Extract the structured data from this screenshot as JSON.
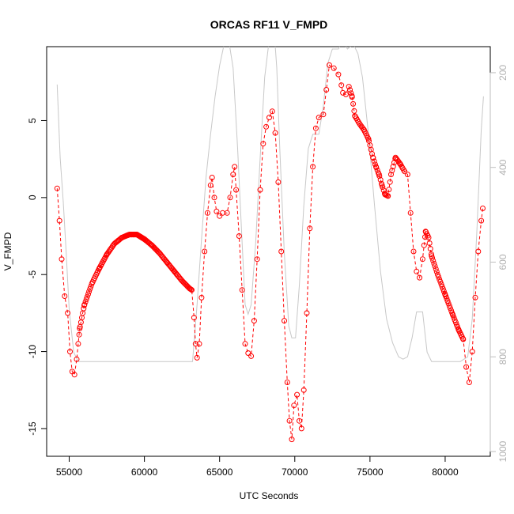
{
  "chart_data": {
    "type": "scatter",
    "title": "ORCAS RF11 V_FMPD",
    "xlabel": "UTC Seconds",
    "ylabel": "V_FMPD",
    "xlim": [
      53500,
      83000
    ],
    "ylim": [
      -16.8,
      9.8
    ],
    "x_ticks": [
      55000,
      60000,
      65000,
      70000,
      75000,
      80000
    ],
    "y_ticks": [
      -15,
      -10,
      -5,
      0,
      5
    ],
    "right_axis": {
      "label": "",
      "range": [
        1010,
        145
      ],
      "ticks": [
        200,
        400,
        600,
        800,
        1000
      ],
      "color": "#bebebe"
    },
    "grid": false,
    "series": [
      {
        "marker": "open-circle",
        "color": "#ff0000",
        "line": "dashed",
        "anchors": [
          [
            54200,
            0.6
          ],
          [
            54350,
            -1.5
          ],
          [
            54500,
            -4
          ],
          [
            54700,
            -6.4
          ],
          [
            54900,
            -7.5
          ],
          [
            55050,
            -10
          ],
          [
            55200,
            -11.3
          ],
          [
            55350,
            -11.5
          ],
          [
            55500,
            -10.5
          ],
          [
            55700,
            -8.5
          ],
          [
            56000,
            -7
          ],
          [
            56500,
            -5.6
          ],
          [
            57000,
            -4.6
          ],
          [
            57500,
            -3.7
          ],
          [
            58000,
            -3.0
          ],
          [
            58500,
            -2.6
          ],
          [
            59000,
            -2.4
          ],
          [
            59500,
            -2.4
          ],
          [
            60000,
            -2.7
          ],
          [
            60500,
            -3.1
          ],
          [
            61000,
            -3.6
          ],
          [
            61500,
            -4.2
          ],
          [
            62000,
            -4.8
          ],
          [
            62500,
            -5.4
          ],
          [
            63000,
            -5.9
          ],
          [
            63150,
            -6.0
          ],
          [
            63300,
            -7.8
          ],
          [
            63400,
            -9.5
          ],
          [
            63500,
            -10.4
          ],
          [
            63650,
            -9.5
          ],
          [
            63800,
            -6.5
          ],
          [
            64000,
            -3.5
          ],
          [
            64200,
            -1.0
          ],
          [
            64400,
            0.8
          ],
          [
            64500,
            1.3
          ],
          [
            64650,
            0.0
          ],
          [
            64800,
            -0.9
          ],
          [
            65000,
            -1.2
          ],
          [
            65200,
            -1.0
          ],
          [
            65500,
            -1.0
          ],
          [
            65700,
            0.0
          ],
          [
            65900,
            1.5
          ],
          [
            66000,
            2.0
          ],
          [
            66100,
            0.5
          ],
          [
            66300,
            -2.5
          ],
          [
            66500,
            -6.0
          ],
          [
            66700,
            -9.5
          ],
          [
            66900,
            -10.1
          ],
          [
            67100,
            -10.3
          ],
          [
            67300,
            -8.0
          ],
          [
            67500,
            -4.0
          ],
          [
            67700,
            0.5
          ],
          [
            67900,
            3.5
          ],
          [
            68100,
            4.6
          ],
          [
            68300,
            5.2
          ],
          [
            68500,
            5.6
          ],
          [
            68700,
            4.2
          ],
          [
            68900,
            1.0
          ],
          [
            69100,
            -3.5
          ],
          [
            69300,
            -8.0
          ],
          [
            69500,
            -12.0
          ],
          [
            69650,
            -14.5
          ],
          [
            69800,
            -15.7
          ],
          [
            69950,
            -13.5
          ],
          [
            70150,
            -12.8
          ],
          [
            70300,
            -14.5
          ],
          [
            70450,
            -15.0
          ],
          [
            70600,
            -12.5
          ],
          [
            70800,
            -7.5
          ],
          [
            71000,
            -2.0
          ],
          [
            71200,
            2.0
          ],
          [
            71400,
            4.5
          ],
          [
            71600,
            5.2
          ],
          [
            71900,
            5.4
          ],
          [
            72100,
            7.0
          ],
          [
            72300,
            8.6
          ],
          [
            72600,
            8.4
          ],
          [
            72900,
            8.0
          ],
          [
            73100,
            7.3
          ],
          [
            73200,
            6.8
          ],
          [
            73400,
            6.7
          ],
          [
            73600,
            7.2
          ],
          [
            73800,
            6.6
          ],
          [
            74000,
            5.3
          ],
          [
            74300,
            4.8
          ],
          [
            74600,
            4.4
          ],
          [
            74900,
            3.8
          ],
          [
            75200,
            2.6
          ],
          [
            75400,
            2.0
          ],
          [
            75600,
            1.5
          ],
          [
            75800,
            0.8
          ],
          [
            76000,
            0.2
          ],
          [
            76200,
            0.1
          ],
          [
            76400,
            1.5
          ],
          [
            76700,
            2.6
          ],
          [
            77000,
            2.2
          ],
          [
            77300,
            1.7
          ],
          [
            77500,
            1.5
          ],
          [
            77700,
            -1.0
          ],
          [
            77900,
            -3.5
          ],
          [
            78100,
            -4.8
          ],
          [
            78300,
            -5.2
          ],
          [
            78500,
            -4.0
          ],
          [
            78700,
            -2.2
          ],
          [
            78900,
            -2.6
          ],
          [
            79100,
            -3.8
          ],
          [
            79500,
            -5.0
          ],
          [
            80000,
            -6.3
          ],
          [
            80500,
            -7.6
          ],
          [
            80900,
            -8.6
          ],
          [
            81200,
            -9.2
          ],
          [
            81400,
            -11.0
          ],
          [
            81600,
            -12.0
          ],
          [
            81800,
            -10.0
          ],
          [
            82000,
            -6.5
          ],
          [
            82200,
            -3.5
          ],
          [
            82400,
            -1.5
          ],
          [
            82500,
            -0.7
          ]
        ],
        "segments": [
          {
            "x0": 55600,
            "x1": 63150,
            "step": 60
          },
          {
            "x0": 58800,
            "x1": 60100,
            "step": 40
          },
          {
            "x0": 73600,
            "x1": 77300,
            "step": 70
          },
          {
            "x0": 78600,
            "x1": 81200,
            "step": 60
          }
        ]
      }
    ],
    "reference_line": {
      "color": "#c8c8c8",
      "axis": "right",
      "anchors": [
        [
          54200,
          225
        ],
        [
          54400,
          380
        ],
        [
          54600,
          470
        ],
        [
          54800,
          580
        ],
        [
          55000,
          700
        ],
        [
          55300,
          790
        ],
        [
          55600,
          810
        ],
        [
          56000,
          810
        ],
        [
          58000,
          810
        ],
        [
          60000,
          810
        ],
        [
          62000,
          810
        ],
        [
          63200,
          810
        ],
        [
          63500,
          690
        ],
        [
          63800,
          550
        ],
        [
          64100,
          420
        ],
        [
          64400,
          330
        ],
        [
          64700,
          250
        ],
        [
          65000,
          185
        ],
        [
          65300,
          140
        ],
        [
          65600,
          130
        ],
        [
          65900,
          190
        ],
        [
          66200,
          360
        ],
        [
          66500,
          560
        ],
        [
          66700,
          690
        ],
        [
          66900,
          710
        ],
        [
          67100,
          690
        ],
        [
          67400,
          560
        ],
        [
          67700,
          380
        ],
        [
          68000,
          210
        ],
        [
          68300,
          130
        ],
        [
          68600,
          100
        ],
        [
          68800,
          190
        ],
        [
          69000,
          360
        ],
        [
          69300,
          580
        ],
        [
          69600,
          735
        ],
        [
          69800,
          760
        ],
        [
          70050,
          760
        ],
        [
          70300,
          650
        ],
        [
          70600,
          480
        ],
        [
          70900,
          360
        ],
        [
          71200,
          330
        ],
        [
          71600,
          330
        ],
        [
          71900,
          270
        ],
        [
          72200,
          180
        ],
        [
          72500,
          150
        ],
        [
          72900,
          150
        ],
        [
          73200,
          130
        ],
        [
          73500,
          150
        ],
        [
          73900,
          140
        ],
        [
          74200,
          160
        ],
        [
          74500,
          210
        ],
        [
          74900,
          330
        ],
        [
          75300,
          480
        ],
        [
          75700,
          620
        ],
        [
          76100,
          720
        ],
        [
          76500,
          770
        ],
        [
          76900,
          800
        ],
        [
          77200,
          805
        ],
        [
          77500,
          800
        ],
        [
          77800,
          760
        ],
        [
          78100,
          705
        ],
        [
          78500,
          705
        ],
        [
          78800,
          790
        ],
        [
          79100,
          810
        ],
        [
          80000,
          810
        ],
        [
          81000,
          810
        ],
        [
          81500,
          800
        ],
        [
          81800,
          720
        ],
        [
          82100,
          540
        ],
        [
          82400,
          320
        ],
        [
          82550,
          250
        ]
      ]
    }
  }
}
